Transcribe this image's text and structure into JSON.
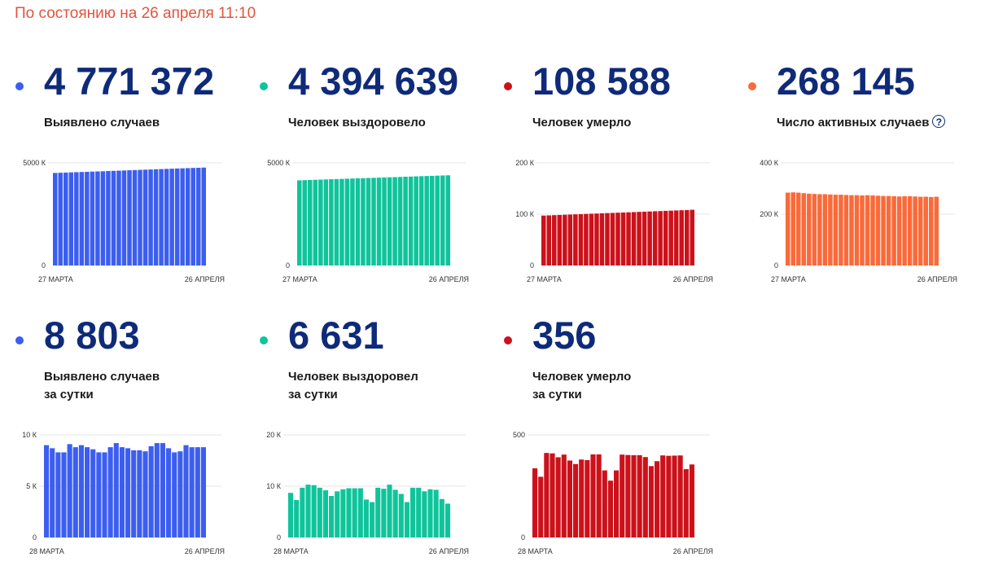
{
  "status_text": "По состоянию на 26 апреля 11:10",
  "help_glyph": "?",
  "cards": [
    {
      "key": "cases",
      "value": "4 771 372",
      "label_lines": [
        "Выявлено случаев"
      ],
      "color": "#3c5ef0",
      "has_help": false,
      "chart_data": {
        "type": "bar",
        "ylim": [
          0,
          5000
        ],
        "y_ticks": [
          {
            "v": 0,
            "label": "0"
          },
          {
            "v": 5000,
            "label": "5000 К"
          }
        ],
        "x_start_label": "27 МАРТА",
        "x_end_label": "26 АПРЕЛЯ",
        "values": [
          4510,
          4519,
          4528,
          4537,
          4546,
          4556,
          4565,
          4574,
          4584,
          4593,
          4602,
          4612,
          4621,
          4631,
          4640,
          4650,
          4659,
          4669,
          4678,
          4688,
          4697,
          4707,
          4717,
          4726,
          4735,
          4744,
          4753,
          4762,
          4771
        ]
      }
    },
    {
      "key": "recovered",
      "value": "4 394 639",
      "label_lines": [
        "Человек выздоровело"
      ],
      "color": "#0fc49b",
      "has_help": false,
      "chart_data": {
        "type": "bar",
        "ylim": [
          0,
          5000
        ],
        "y_ticks": [
          {
            "v": 0,
            "label": "0"
          },
          {
            "v": 5000,
            "label": "5000 К"
          }
        ],
        "x_start_label": "27 МАРТА",
        "x_end_label": "26 АПРЕЛЯ",
        "values": [
          4150,
          4159,
          4168,
          4176,
          4185,
          4194,
          4203,
          4211,
          4220,
          4229,
          4238,
          4246,
          4255,
          4264,
          4272,
          4281,
          4290,
          4299,
          4307,
          4316,
          4325,
          4333,
          4342,
          4351,
          4359,
          4368,
          4377,
          4386,
          4394
        ]
      }
    },
    {
      "key": "deaths",
      "value": "108 588",
      "label_lines": [
        "Человек умерло"
      ],
      "color": "#cc111a",
      "has_help": false,
      "chart_data": {
        "type": "bar",
        "ylim": [
          0,
          200
        ],
        "y_ticks": [
          {
            "v": 0,
            "label": "0"
          },
          {
            "v": 100,
            "label": "100 К"
          },
          {
            "v": 200,
            "label": "200 К"
          }
        ],
        "x_start_label": "27 МАРТА",
        "x_end_label": "26 АПРЕЛЯ",
        "values": [
          97.3,
          97.7,
          98.1,
          98.5,
          98.9,
          99.3,
          99.7,
          100.1,
          100.5,
          100.9,
          101.3,
          101.7,
          102.1,
          102.5,
          102.9,
          103.3,
          103.7,
          104.1,
          104.5,
          104.9,
          105.3,
          105.7,
          106.1,
          106.5,
          106.9,
          107.3,
          107.7,
          108.1,
          108.6
        ]
      }
    },
    {
      "key": "active",
      "value": "268 145",
      "label_lines": [
        "Число активных случаев"
      ],
      "color": "#fa6a3a",
      "has_help": true,
      "chart_data": {
        "type": "bar",
        "ylim": [
          0,
          400
        ],
        "y_ticks": [
          {
            "v": 0,
            "label": "0"
          },
          {
            "v": 200,
            "label": "200 К"
          },
          {
            "v": 400,
            "label": "400 К"
          }
        ],
        "x_start_label": "27 МАРТА",
        "x_end_label": "26 АПРЕЛЯ",
        "values": [
          284,
          285,
          284,
          282,
          280,
          279,
          278,
          278,
          277,
          276,
          276,
          275,
          274,
          274,
          273,
          274,
          273,
          272,
          271,
          271,
          270,
          269,
          270,
          270,
          269,
          268,
          268,
          267,
          268
        ]
      }
    },
    {
      "key": "cases_day",
      "value": "8 803",
      "label_lines": [
        "Выявлено случаев",
        "за сутки"
      ],
      "color": "#3c5ef0",
      "has_help": false,
      "chart_data": {
        "type": "bar",
        "ylim": [
          0,
          10
        ],
        "y_ticks": [
          {
            "v": 0,
            "label": "0"
          },
          {
            "v": 5,
            "label": "5 К"
          },
          {
            "v": 10,
            "label": "10 К"
          }
        ],
        "x_start_label": "28 МАРТА",
        "x_end_label": "26 АПРЕЛЯ",
        "values": [
          9.0,
          8.7,
          8.3,
          8.3,
          9.1,
          8.8,
          9.0,
          8.8,
          8.6,
          8.3,
          8.3,
          8.8,
          9.2,
          8.8,
          8.7,
          8.5,
          8.5,
          8.4,
          8.9,
          9.2,
          9.2,
          8.7,
          8.3,
          8.4,
          9.0,
          8.8,
          8.8,
          8.8
        ]
      }
    },
    {
      "key": "recovered_day",
      "value": "6 631",
      "label_lines": [
        "Человек выздоровел",
        "за сутки"
      ],
      "color": "#0fc49b",
      "has_help": false,
      "chart_data": {
        "type": "bar",
        "ylim": [
          0,
          20
        ],
        "y_ticks": [
          {
            "v": 0,
            "label": "0"
          },
          {
            "v": 10,
            "label": "10 К"
          },
          {
            "v": 20,
            "label": "20 К"
          }
        ],
        "x_start_label": "28 МАРТА",
        "x_end_label": "26 АПРЕЛЯ",
        "values": [
          8.7,
          7.3,
          9.7,
          10.3,
          10.2,
          9.7,
          9.2,
          8.1,
          9.0,
          9.4,
          9.6,
          9.6,
          9.6,
          7.4,
          6.9,
          9.7,
          9.5,
          10.3,
          9.3,
          8.5,
          6.9,
          9.7,
          9.7,
          9.0,
          9.4,
          9.3,
          7.5,
          6.6
        ]
      }
    },
    {
      "key": "deaths_day",
      "value": "356",
      "label_lines": [
        "Человек умерло",
        "за сутки"
      ],
      "color": "#cc111a",
      "has_help": false,
      "chart_data": {
        "type": "bar",
        "ylim": [
          0,
          500
        ],
        "y_ticks": [
          {
            "v": 0,
            "label": "0"
          },
          {
            "v": 500,
            "label": "500"
          }
        ],
        "x_start_label": "28 МАРТА",
        "x_end_label": "26 АПРЕЛЯ",
        "values": [
          337,
          296,
          412,
          410,
          391,
          404,
          375,
          358,
          380,
          377,
          405,
          405,
          327,
          277,
          327,
          404,
          402,
          401,
          401,
          392,
          348,
          372,
          400,
          398,
          399,
          400,
          333,
          356
        ]
      }
    }
  ]
}
